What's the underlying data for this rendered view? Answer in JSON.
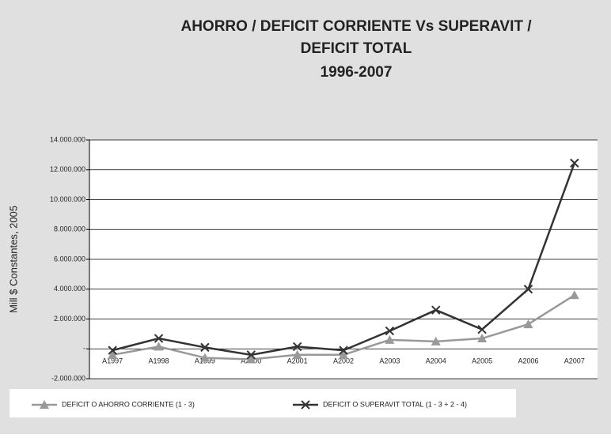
{
  "chart_data": {
    "type": "line",
    "title": [
      "AHORRO / DEFICIT CORRIENTE Vs SUPERAVIT /",
      "DEFICIT TOTAL",
      "1996-2007"
    ],
    "y_label": "Mill $ Constantes, 2005",
    "categories": [
      "A1997",
      "A1998",
      "A1999",
      "A2000",
      "A2001",
      "A2002",
      "A2003",
      "A2004",
      "A2005",
      "A2006",
      "A2007"
    ],
    "series": [
      {
        "name": "DEFICIT O AHORRO CORRIENTE (1 - 3)",
        "color": "#999999",
        "marker": "triangle",
        "values": [
          -400000,
          150000,
          -600000,
          -700000,
          -400000,
          -400000,
          600000,
          500000,
          700000,
          1650000,
          3600000
        ]
      },
      {
        "name": "DEFICIT O SUPERAVIT TOTAL (1 - 3 + 2 - 4)",
        "color": "#333333",
        "marker": "x",
        "values": [
          -100000,
          700000,
          100000,
          -400000,
          150000,
          -100000,
          1200000,
          2600000,
          1300000,
          4000000,
          12450000
        ]
      }
    ],
    "ylim": [
      -2000000,
      14000000
    ],
    "yticks": [
      {
        "value": -2000000,
        "label": "-2.000.000"
      },
      {
        "value": 0,
        "label": "-"
      },
      {
        "value": 2000000,
        "label": "2.000.000"
      },
      {
        "value": 4000000,
        "label": "4.000.000"
      },
      {
        "value": 6000000,
        "label": "6.000.000"
      },
      {
        "value": 8000000,
        "label": "8.000.000"
      },
      {
        "value": 10000000,
        "label": "10.000.000"
      },
      {
        "value": 12000000,
        "label": "12.000.000"
      },
      {
        "value": 14000000,
        "label": "14.000.000"
      }
    ],
    "grid": true,
    "legend": "bottom"
  }
}
